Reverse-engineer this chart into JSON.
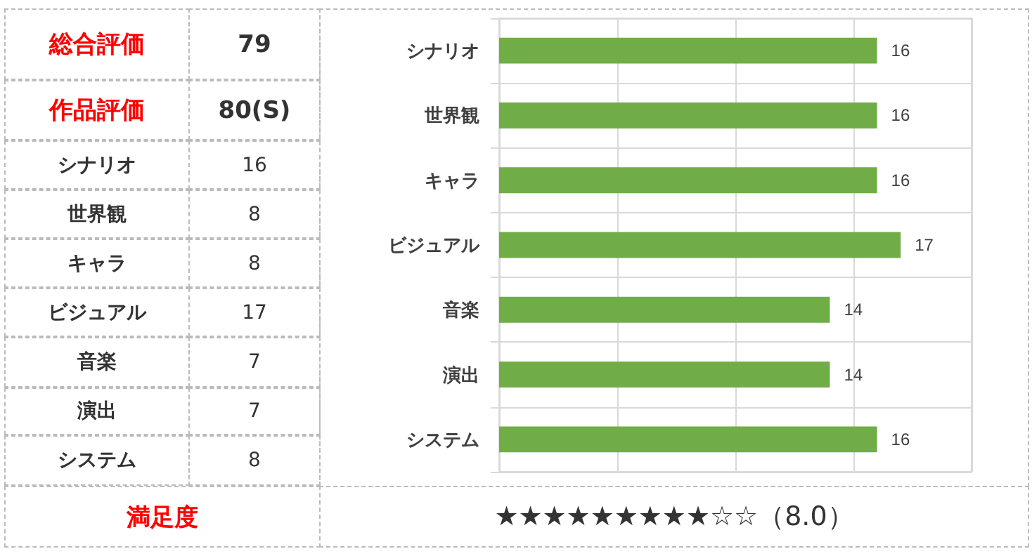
{
  "chart_data": [
    {
      "type": "other",
      "annotations": [
        "総合評価",
        "79",
        "作品評価",
        "80(S)",
        "シナリオ",
        "16",
        "世界観",
        "8",
        "キャラ",
        "8",
        "ビジュアル",
        "17",
        "音楽",
        "7",
        "演出",
        "7",
        "システム",
        "8",
        "満足度",
        "★★★★★★★★★☆☆（8.0）"
      ]
    },
    {
      "type": "bar",
      "orientation": "horizontal",
      "categories": [
        "シナリオ",
        "世界観",
        "キャラ",
        "ビジュアル",
        "音楽",
        "演出",
        "システム"
      ],
      "values": [
        16,
        16,
        16,
        17,
        14,
        14,
        16
      ],
      "color": "#70ad47",
      "xlim": [
        0,
        20
      ],
      "xticks": [
        {
          "value": 0,
          "label": null
        },
        {
          "value": 5,
          "label": null
        },
        {
          "value": 10,
          "label": null
        },
        {
          "value": 15,
          "label": null
        },
        {
          "value": 20,
          "label": null
        }
      ],
      "grid": true,
      "tick_labels": "y",
      "data_labels": true
    }
  ]
}
